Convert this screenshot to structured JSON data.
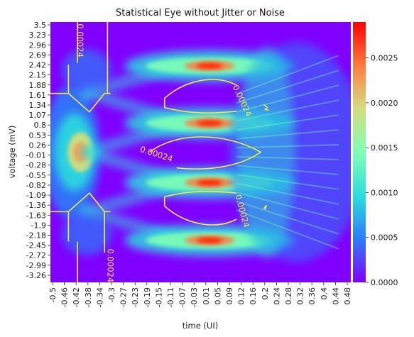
{
  "chart_data": {
    "type": "heatmap",
    "title": "Statistical Eye without Jitter or Noise",
    "xlabel": "time (UI)",
    "ylabel": "voltage (mV)",
    "x_ticks": [
      "-0.5",
      "-0.46",
      "-0.42",
      "-0.38",
      "-0.34",
      "-0.3",
      "-0.27",
      "-0.23",
      "-0.19",
      "-0.15",
      "-0.11",
      "-0.07",
      "-0.03",
      "0.01",
      "0.05",
      "0.09",
      "0.12",
      "0.16",
      "0.2",
      "0.24",
      "0.28",
      "0.32",
      "0.36",
      "0.4",
      "0.44",
      "0.48"
    ],
    "y_ticks": [
      "3.5",
      "3.23",
      "2.96",
      "2.69",
      "2.42",
      "2.15",
      "1.88",
      "1.61",
      "1.34",
      "1.07",
      "0.8",
      "0.53",
      "0.26",
      "-0.01",
      "-0.28",
      "-0.55",
      "-0.82",
      "-1.09",
      "-1.36",
      "-1.63",
      "-1.9",
      "-2.18",
      "-2.45",
      "-2.72",
      "-2.99",
      "-3.26"
    ],
    "xlim": [
      -0.5,
      0.5
    ],
    "ylim": [
      -3.5,
      3.5
    ],
    "colormap": "rainbow",
    "colorbar": {
      "min": 0.0,
      "max": 0.0029,
      "ticks": [
        "0.0000",
        "0.0005",
        "0.0010",
        "0.0015",
        "0.0020",
        "0.0025"
      ],
      "tick_values": [
        0.0,
        0.0005,
        0.001,
        0.0015,
        0.002,
        0.0025
      ]
    },
    "density_peaks": [
      {
        "t": -0.4,
        "v": 0.0,
        "value": 0.0021
      },
      {
        "t": 0.03,
        "v": 2.32,
        "value": 0.0029
      },
      {
        "t": 0.03,
        "v": 0.78,
        "value": 0.0029
      },
      {
        "t": 0.03,
        "v": -0.82,
        "value": 0.0029
      },
      {
        "t": 0.03,
        "v": -2.37,
        "value": 0.0029
      }
    ],
    "contour_level": 0.00024,
    "contour_labels": [
      "0.00024",
      "0.00024",
      "0.00024",
      "0.00024",
      "0.00024"
    ],
    "colors": {
      "contour": "#f5e642",
      "background": "#8000ff"
    }
  }
}
